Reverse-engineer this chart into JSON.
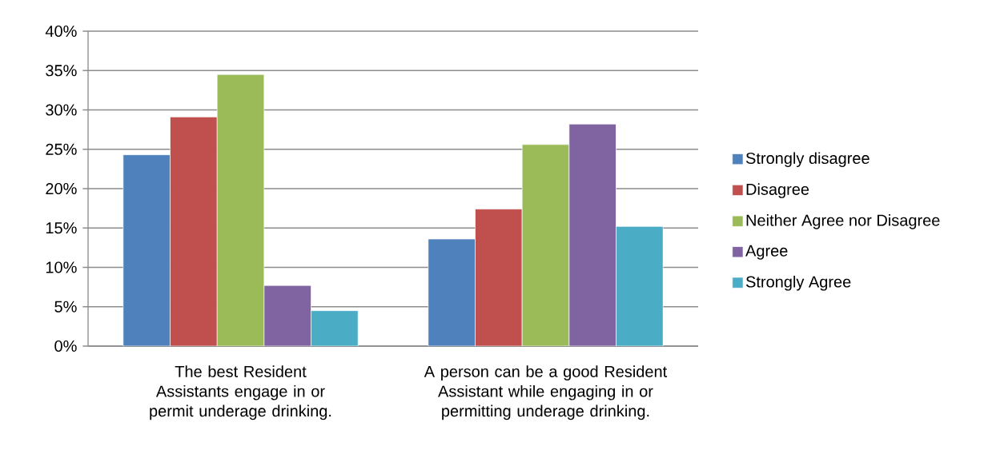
{
  "chart_data": {
    "type": "bar",
    "categories": [
      "The best Resident Assistants engage in or permit underage drinking.",
      "A person can be a good Resident Assistant while engaging in or permitting underage drinking."
    ],
    "series": [
      {
        "name": "Strongly disagree",
        "color": "#4f81bd",
        "values": [
          24.3,
          13.6
        ]
      },
      {
        "name": "Disagree",
        "color": "#c0504d",
        "values": [
          29.1,
          17.4
        ]
      },
      {
        "name": "Neither Agree nor Disagree",
        "color": "#9bbb59",
        "values": [
          34.5,
          25.6
        ]
      },
      {
        "name": "Agree",
        "color": "#8064a2",
        "values": [
          7.7,
          28.2
        ]
      },
      {
        "name": "Strongly Agree",
        "color": "#4bacc6",
        "values": [
          4.5,
          15.2
        ]
      }
    ],
    "ylim": [
      0,
      40
    ],
    "yticks": [
      {
        "value": 0,
        "label": "0%"
      },
      {
        "value": 5,
        "label": "5%"
      },
      {
        "value": 10,
        "label": "10%"
      },
      {
        "value": 15,
        "label": "15%"
      },
      {
        "value": 20,
        "label": "20%"
      },
      {
        "value": 25,
        "label": "25%"
      },
      {
        "value": 30,
        "label": "30%"
      },
      {
        "value": 35,
        "label": "35%"
      },
      {
        "value": 40,
        "label": "40%"
      }
    ],
    "grid": "y",
    "legend": "right"
  }
}
